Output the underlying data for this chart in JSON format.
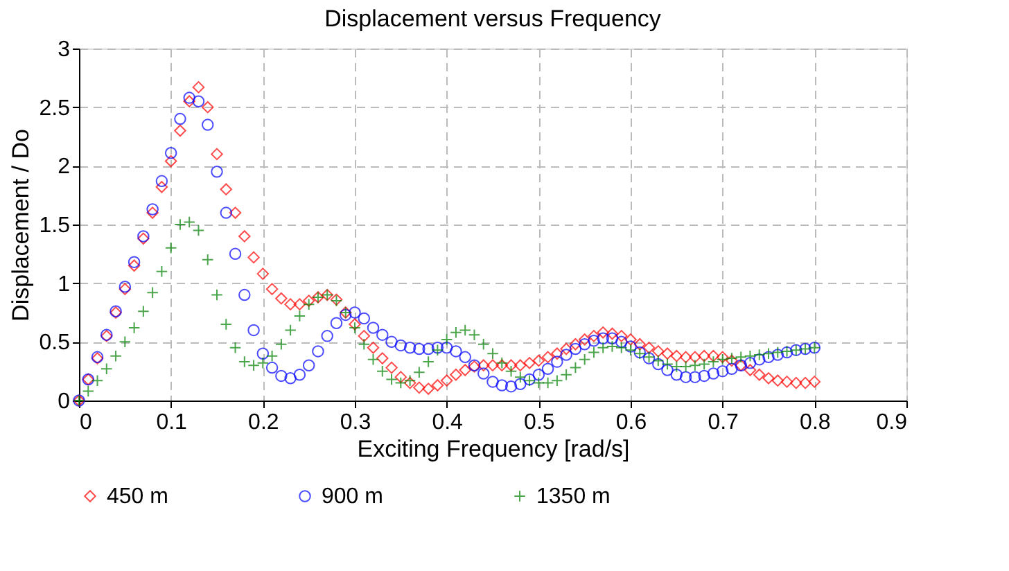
{
  "chart_data": {
    "type": "scatter",
    "title": "Displacement versus Frequency",
    "xlabel": "Exciting Frequency [rad/s]",
    "ylabel": "Displacement / Do",
    "x": [
      0,
      0.01,
      0.02,
      0.03,
      0.04,
      0.05,
      0.06,
      0.07,
      0.08,
      0.09,
      0.1,
      0.11,
      0.12,
      0.13,
      0.14,
      0.15,
      0.16,
      0.17,
      0.18,
      0.19,
      0.2,
      0.21,
      0.22,
      0.23,
      0.24,
      0.25,
      0.26,
      0.27,
      0.28,
      0.29,
      0.3,
      0.31,
      0.32,
      0.33,
      0.34,
      0.35,
      0.36,
      0.37,
      0.38,
      0.39,
      0.4,
      0.41,
      0.42,
      0.43,
      0.44,
      0.45,
      0.46,
      0.47,
      0.48,
      0.49,
      0.5,
      0.51,
      0.52,
      0.53,
      0.54,
      0.55,
      0.56,
      0.57,
      0.58,
      0.59,
      0.6,
      0.61,
      0.62,
      0.63,
      0.64,
      0.65,
      0.66,
      0.67,
      0.68,
      0.69,
      0.7,
      0.71,
      0.72,
      0.73,
      0.74,
      0.75,
      0.76,
      0.77,
      0.78,
      0.79,
      0.8
    ],
    "series": [
      {
        "name": "450 m",
        "color": "#ff0000",
        "marker": "diamond",
        "values": [
          0,
          0.18,
          0.36,
          0.55,
          0.75,
          0.95,
          1.15,
          1.38,
          1.6,
          1.82,
          2.04,
          2.3,
          2.55,
          2.67,
          2.5,
          2.1,
          1.8,
          1.6,
          1.4,
          1.22,
          1.08,
          0.95,
          0.87,
          0.82,
          0.82,
          0.85,
          0.88,
          0.9,
          0.86,
          0.75,
          0.65,
          0.55,
          0.45,
          0.36,
          0.28,
          0.2,
          0.15,
          0.11,
          0.1,
          0.13,
          0.17,
          0.22,
          0.26,
          0.29,
          0.3,
          0.3,
          0.3,
          0.3,
          0.3,
          0.32,
          0.34,
          0.37,
          0.4,
          0.44,
          0.48,
          0.52,
          0.55,
          0.58,
          0.57,
          0.55,
          0.52,
          0.48,
          0.45,
          0.42,
          0.4,
          0.38,
          0.37,
          0.37,
          0.38,
          0.38,
          0.37,
          0.34,
          0.3,
          0.26,
          0.22,
          0.19,
          0.17,
          0.16,
          0.15,
          0.15,
          0.16
        ]
      },
      {
        "name": "900 m",
        "color": "#0000ff",
        "marker": "circle",
        "values": [
          0,
          0.18,
          0.37,
          0.56,
          0.76,
          0.97,
          1.18,
          1.4,
          1.63,
          1.87,
          2.11,
          2.4,
          2.58,
          2.55,
          2.35,
          1.95,
          1.6,
          1.25,
          0.9,
          0.6,
          0.4,
          0.28,
          0.21,
          0.19,
          0.22,
          0.3,
          0.42,
          0.55,
          0.66,
          0.73,
          0.75,
          0.7,
          0.62,
          0.56,
          0.5,
          0.47,
          0.45,
          0.44,
          0.44,
          0.45,
          0.45,
          0.42,
          0.37,
          0.3,
          0.23,
          0.16,
          0.13,
          0.12,
          0.14,
          0.18,
          0.22,
          0.27,
          0.33,
          0.39,
          0.44,
          0.48,
          0.51,
          0.53,
          0.53,
          0.5,
          0.46,
          0.41,
          0.36,
          0.31,
          0.26,
          0.22,
          0.2,
          0.2,
          0.21,
          0.23,
          0.25,
          0.27,
          0.3,
          0.32,
          0.35,
          0.37,
          0.39,
          0.41,
          0.43,
          0.44,
          0.45
        ]
      },
      {
        "name": "1350 m",
        "color": "#008000",
        "marker": "cross",
        "values": [
          0,
          0.08,
          0.17,
          0.27,
          0.38,
          0.5,
          0.62,
          0.76,
          0.92,
          1.1,
          1.3,
          1.5,
          1.52,
          1.45,
          1.2,
          0.9,
          0.65,
          0.45,
          0.33,
          0.3,
          0.32,
          0.38,
          0.48,
          0.6,
          0.72,
          0.82,
          0.88,
          0.9,
          0.85,
          0.75,
          0.62,
          0.48,
          0.35,
          0.25,
          0.18,
          0.15,
          0.17,
          0.24,
          0.33,
          0.43,
          0.52,
          0.58,
          0.6,
          0.56,
          0.48,
          0.4,
          0.32,
          0.25,
          0.2,
          0.17,
          0.15,
          0.15,
          0.17,
          0.22,
          0.28,
          0.35,
          0.41,
          0.45,
          0.46,
          0.45,
          0.43,
          0.4,
          0.37,
          0.34,
          0.31,
          0.29,
          0.29,
          0.3,
          0.31,
          0.33,
          0.35,
          0.36,
          0.37,
          0.38,
          0.39,
          0.4,
          0.41,
          0.42,
          0.43,
          0.44,
          0.45
        ]
      }
    ],
    "xlim": [
      0,
      0.9
    ],
    "xticks": [
      0,
      0.1,
      0.2,
      0.3,
      0.4,
      0.5,
      0.6,
      0.7,
      0.8,
      0.9
    ],
    "ylim": [
      0,
      3
    ],
    "yticks": [
      0,
      0.5,
      1,
      1.5,
      2,
      2.5,
      3
    ],
    "grid": true,
    "legend": "bottom"
  }
}
